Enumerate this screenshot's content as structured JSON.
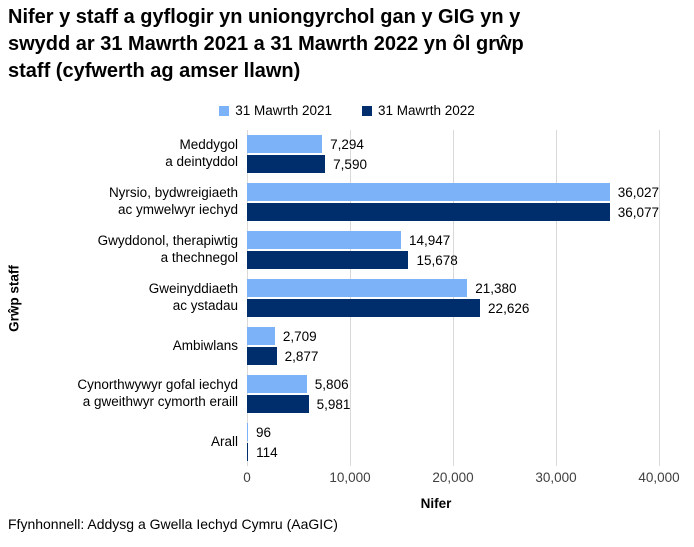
{
  "title": "Nifer y staff a gyflogir yn uniongyrchol gan y GIG yn y\nswydd ar 31 Mawrth 2021 a 31 Mawrth 2022 yn ôl grŵp\nstaff (cyfwerth ag amser llawn)",
  "footer": {
    "source": "Ffynhonnell: Addysg a Gwella Iechyd Cymru (AaGIC)"
  },
  "colors": {
    "series_2021": "#7CB2F8",
    "series_2022": "#002D6B",
    "gridline": "#D9D9D9",
    "text": "#000000",
    "tick_text": "#404040"
  },
  "chart_data": {
    "type": "bar",
    "orientation": "horizontal",
    "xlabel": "Nifer",
    "ylabel": "Grŵp staff",
    "xlim": [
      0,
      40000
    ],
    "xticks": [
      "0",
      "10,000",
      "20,000",
      "30,000",
      "40,000"
    ],
    "grid": true,
    "legend_position": "top",
    "categories": [
      "Meddygol\na deintyddol",
      "Nyrsio, bydwreigiaeth\nac ymwelwyr iechyd",
      "Gwyddonol, therapiwtig\na thechnegol",
      "Gweinyddiaeth\nac ystadau",
      "Ambiwlans",
      "Cynorthwywyr gofal iechyd\na gweithwyr cymorth eraill",
      "Arall"
    ],
    "series": [
      {
        "name": "31 Mawrth 2021",
        "color": "#7CB2F8",
        "values": [
          7294,
          36027,
          14947,
          21380,
          2709,
          5806,
          96
        ],
        "labels": [
          "7,294",
          "36,027",
          "14,947",
          "21,380",
          "2,709",
          "5,806",
          "96"
        ]
      },
      {
        "name": "31 Mawrth 2022",
        "color": "#002D6B",
        "values": [
          7590,
          36077,
          15678,
          22626,
          2877,
          5981,
          114
        ],
        "labels": [
          "7,590",
          "36,077",
          "15,678",
          "22,626",
          "2,877",
          "5,981",
          "114"
        ]
      }
    ]
  }
}
